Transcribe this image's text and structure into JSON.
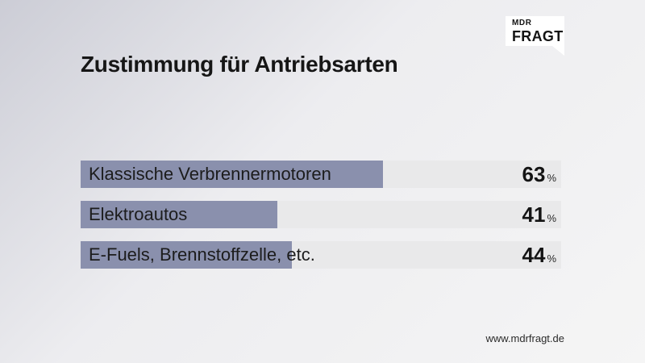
{
  "brand": {
    "line1": "MDR",
    "line2": "FRAGT"
  },
  "title": "Zustimmung für Antriebsarten",
  "footer": {
    "url": "www.mdrfragt.de"
  },
  "colors": {
    "bar_fill": "#8a90ad",
    "bar_track": "#e9e9ea",
    "text": "#161616",
    "bg_from": "#cccdd6",
    "bg_mid": "#ededf0",
    "bg_to": "#f5f5f5"
  },
  "chart_data": {
    "type": "bar",
    "orientation": "horizontal",
    "title": "Zustimmung für Antriebsarten",
    "categories": [
      "Klassische Verbrennermotoren",
      "Elektroautos",
      "E-Fuels, Brennstoffzelle, etc."
    ],
    "values": [
      63,
      41,
      44
    ],
    "unit": "%",
    "xlim": [
      0,
      100
    ],
    "grid": false,
    "legend": false,
    "value_labels_position": "right-inside-track",
    "category_labels_position": "left-inside-bar"
  }
}
